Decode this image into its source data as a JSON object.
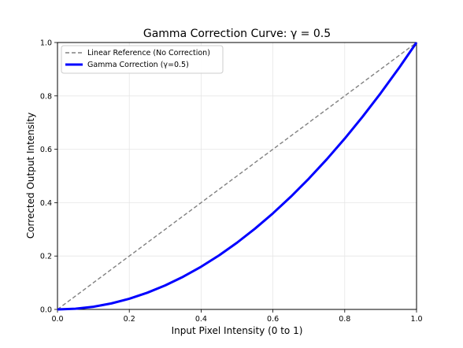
{
  "chart_data": {
    "type": "line",
    "title": "Gamma Correction Curve: γ = 0.5",
    "xlabel": "Input Pixel Intensity (0 to 1)",
    "ylabel": "Corrected Output Intensity",
    "xlim": [
      0.0,
      1.0
    ],
    "ylim": [
      0.0,
      1.0
    ],
    "xticks": [
      "0.0",
      "0.2",
      "0.4",
      "0.6",
      "0.8",
      "1.0"
    ],
    "yticks": [
      "0.0",
      "0.2",
      "0.4",
      "0.6",
      "0.8",
      "1.0"
    ],
    "grid": true,
    "legend_position": "top-left",
    "series": [
      {
        "name": "Linear Reference (No Correction)",
        "color": "#808080",
        "style": "dashed",
        "x": [
          0.0,
          0.1,
          0.2,
          0.3,
          0.4,
          0.5,
          0.6,
          0.7,
          0.8,
          0.9,
          1.0
        ],
        "y": [
          0.0,
          0.1,
          0.2,
          0.3,
          0.4,
          0.5,
          0.6,
          0.7,
          0.8,
          0.9,
          1.0
        ]
      },
      {
        "name": "Gamma Correction (γ=0.5)",
        "color": "#0000ff",
        "style": "solid",
        "x": [
          0.0,
          0.05,
          0.1,
          0.15,
          0.2,
          0.25,
          0.3,
          0.35,
          0.4,
          0.45,
          0.5,
          0.55,
          0.6,
          0.65,
          0.7,
          0.75,
          0.8,
          0.85,
          0.9,
          0.95,
          1.0
        ],
        "y": [
          0.0,
          0.0025,
          0.01,
          0.0225,
          0.04,
          0.0625,
          0.09,
          0.1225,
          0.16,
          0.2025,
          0.25,
          0.3025,
          0.36,
          0.4225,
          0.49,
          0.5625,
          0.64,
          0.7225,
          0.81,
          0.9025,
          1.0
        ]
      }
    ]
  }
}
